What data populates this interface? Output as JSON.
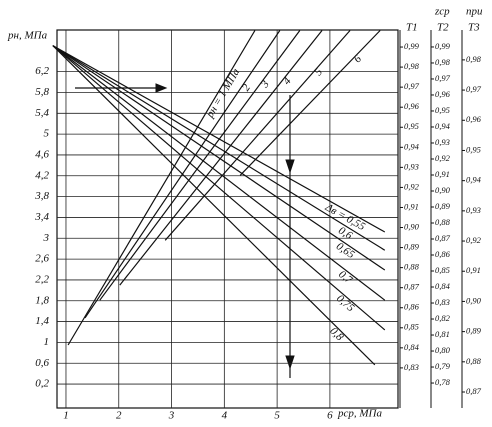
{
  "chart_data": {
    "type": "nomogram",
    "ylabel": "pн, МПа",
    "xlabel": "pср, МПа",
    "xlim": [
      0.83,
      7.29
    ],
    "ylim": [
      -0.26,
      7.0
    ],
    "xticks": [
      1,
      2,
      3,
      4,
      5,
      6
    ],
    "yticks": [
      {
        "value": 0.2,
        "label": "0,2"
      },
      {
        "value": 0.6,
        "label": "0,6"
      },
      1,
      {
        "value": 1.4,
        "label": "1,4"
      },
      {
        "value": 1.8,
        "label": "1,8"
      },
      {
        "value": 2.2,
        "label": "2,2"
      },
      {
        "value": 2.6,
        "label": "2,6"
      },
      3,
      {
        "value": 3.4,
        "label": "3,4"
      },
      {
        "value": 3.8,
        "label": "3,8"
      },
      {
        "value": 4.2,
        "label": "4,2"
      },
      {
        "value": 4.6,
        "label": "4,6"
      },
      5,
      {
        "value": 5.4,
        "label": "5,4"
      },
      {
        "value": 5.8,
        "label": "5,8"
      },
      {
        "value": 6.2,
        "label": "6,2"
      }
    ],
    "grid": true,
    "color": "#111111",
    "series": [
      {
        "name": "Δв = 0,55",
        "x": [
          0.75,
          7.04
        ],
        "y": [
          6.7,
          3.12
        ]
      },
      {
        "name": "0,6",
        "x": [
          0.75,
          7.04
        ],
        "y": [
          6.7,
          2.77
        ]
      },
      {
        "name": "0,65",
        "x": [
          0.75,
          7.04
        ],
        "y": [
          6.7,
          2.39
        ]
      },
      {
        "name": "0,7",
        "x": [
          0.75,
          7.04
        ],
        "y": [
          6.7,
          1.81
        ]
      },
      {
        "name": "0,75",
        "x": [
          0.75,
          7.04
        ],
        "y": [
          6.7,
          1.24
        ]
      },
      {
        "name": "0,8",
        "x": [
          0.75,
          6.85
        ],
        "y": [
          6.7,
          0.57
        ]
      },
      {
        "name": "pн = 1 МПа",
        "x": [
          1.04,
          4.58
        ],
        "y": [
          0.95,
          6.99
        ]
      },
      {
        "name": "2",
        "x": [
          1.36,
          5.05
        ],
        "y": [
          1.47,
          6.99
        ]
      },
      {
        "name": "3",
        "x": [
          1.64,
          5.43
        ],
        "y": [
          1.81,
          6.99
        ]
      },
      {
        "name": "4",
        "x": [
          2.02,
          5.85
        ],
        "y": [
          2.1,
          6.99
        ]
      },
      {
        "name": "5",
        "x": [
          2.88,
          6.38
        ],
        "y": [
          2.96,
          6.99
        ]
      },
      {
        "name": "6",
        "x": [
          4.3,
          6.95
        ],
        "y": [
          4.21,
          6.99
        ]
      }
    ],
    "right_axes": [
      {
        "title": "T1",
        "lim": [
          0.81,
          0.9985
        ],
        "ticks": [
          {
            "value": 0.99,
            "label": "0,99"
          },
          {
            "value": 0.98,
            "label": "0,98"
          },
          {
            "value": 0.97,
            "label": "0,97"
          },
          {
            "value": 0.96,
            "label": "0,96"
          },
          {
            "value": 0.95,
            "label": "0,95"
          },
          {
            "value": 0.94,
            "label": "0,94"
          },
          {
            "value": 0.93,
            "label": "0,93"
          },
          {
            "value": 0.92,
            "label": "0,92"
          },
          {
            "value": 0.91,
            "label": "0,91"
          },
          {
            "value": 0.9,
            "label": "0,90"
          },
          {
            "value": 0.89,
            "label": "0,89"
          },
          {
            "value": 0.88,
            "label": "0,88"
          },
          {
            "value": 0.87,
            "label": "0,87"
          },
          {
            "value": 0.86,
            "label": "0,86"
          },
          {
            "value": 0.85,
            "label": "0,85"
          },
          {
            "value": 0.84,
            "label": "0,84"
          },
          {
            "value": 0.83,
            "label": "0,83"
          }
        ]
      },
      {
        "header": "zср",
        "title": "T2",
        "lim": [
          0.7644,
          1.0006
        ],
        "ticks": [
          {
            "value": 0.99,
            "label": "0,99"
          },
          {
            "value": 0.98,
            "label": "0,98"
          },
          {
            "value": 0.97,
            "label": "0,97"
          },
          {
            "value": 0.96,
            "label": "0,96"
          },
          {
            "value": 0.95,
            "label": "0,95"
          },
          {
            "value": 0.94,
            "label": "0,94"
          },
          {
            "value": 0.93,
            "label": "0,93"
          },
          {
            "value": 0.92,
            "label": "0,92"
          },
          {
            "value": 0.91,
            "label": "0,91"
          },
          {
            "value": 0.9,
            "label": "0,90"
          },
          {
            "value": 0.89,
            "label": "0,89"
          },
          {
            "value": 0.88,
            "label": "0,88"
          },
          {
            "value": 0.87,
            "label": "0,87"
          },
          {
            "value": 0.86,
            "label": "0,86"
          },
          {
            "value": 0.85,
            "label": "0,85"
          },
          {
            "value": 0.84,
            "label": "0,84"
          },
          {
            "value": 0.83,
            "label": "0,83"
          },
          {
            "value": 0.82,
            "label": "0,82"
          },
          {
            "value": 0.81,
            "label": "0,81"
          },
          {
            "value": 0.8,
            "label": "0,80"
          },
          {
            "value": 0.79,
            "label": "0,79"
          },
          {
            "value": 0.78,
            "label": "0,78"
          }
        ]
      },
      {
        "header": "при",
        "title": "T3",
        "lim": [
          0.8647,
          0.9899
        ],
        "ticks": [
          {
            "value": 0.98,
            "label": "0,98"
          },
          {
            "value": 0.97,
            "label": "0,97"
          },
          {
            "value": 0.96,
            "label": "0,96"
          },
          {
            "value": 0.95,
            "label": "0,95"
          },
          {
            "value": 0.94,
            "label": "0,94"
          },
          {
            "value": 0.93,
            "label": "0,93"
          },
          {
            "value": 0.92,
            "label": "0,92"
          },
          {
            "value": 0.91,
            "label": "0,91"
          },
          {
            "value": 0.9,
            "label": "0,90"
          },
          {
            "value": 0.89,
            "label": "0,89"
          },
          {
            "value": 0.88,
            "label": "0,88"
          },
          {
            "value": 0.87,
            "label": "0,87"
          }
        ]
      }
    ]
  }
}
